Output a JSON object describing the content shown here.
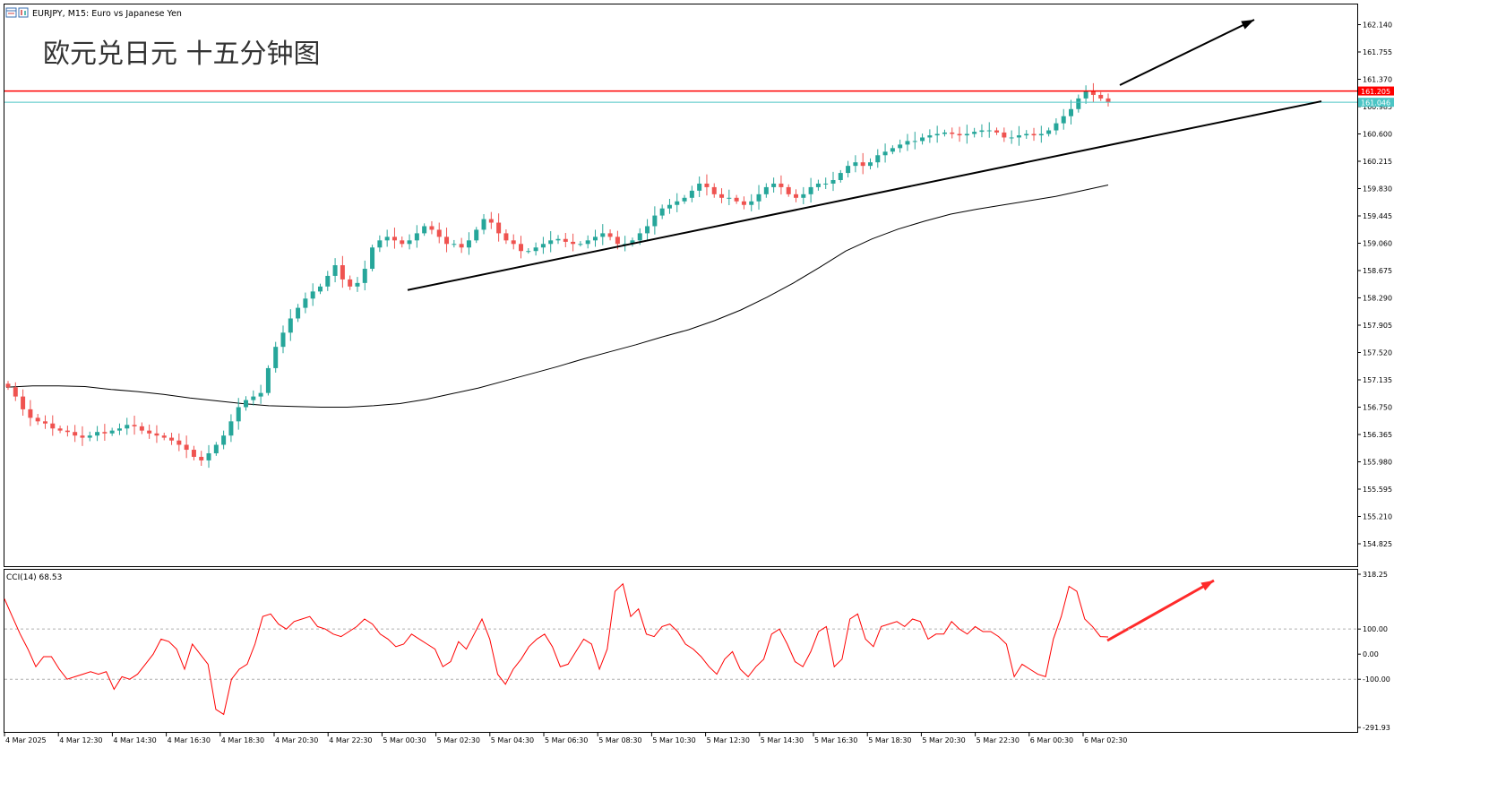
{
  "header": {
    "symbol_line": "EURJPY, M15: Euro vs Japanese Yen",
    "overlay_title": "欧元兑日元 十五分钟图"
  },
  "icons": [
    "window-icon",
    "chart-icon"
  ],
  "colors": {
    "bull": "#26a69a",
    "bear": "#ef5350",
    "resistance": "#ff0000",
    "current": "#4cc5c5",
    "ma": "#000000",
    "cci": "#ff0000",
    "arrow_black": "#000000",
    "arrow_red": "#ff2a2a"
  },
  "chart_data": [
    {
      "type": "candlestick",
      "title": "EURJPY, M15: Euro vs Japanese Yen",
      "yticks": [
        "162.140",
        "161.755",
        "161.370",
        "160.985",
        "160.600",
        "160.215",
        "159.830",
        "159.445",
        "159.060",
        "158.675",
        "158.290",
        "157.905",
        "157.520",
        "157.135",
        "156.750",
        "156.365",
        "155.980",
        "155.595",
        "155.210",
        "154.825"
      ],
      "ylim": [
        154.6,
        162.4
      ],
      "xticks": [
        "4 Mar 2025",
        "4 Mar 12:30",
        "4 Mar 14:30",
        "4 Mar 16:30",
        "4 Mar 18:30",
        "4 Mar 20:30",
        "4 Mar 22:30",
        "5 Mar 00:30",
        "5 Mar 02:30",
        "5 Mar 04:30",
        "5 Mar 06:30",
        "5 Mar 08:30",
        "5 Mar 10:30",
        "5 Mar 12:30",
        "5 Mar 14:30",
        "5 Mar 16:30",
        "5 Mar 18:30",
        "5 Mar 20:30",
        "5 Mar 22:30",
        "6 Mar 00:30",
        "6 Mar 02:30"
      ],
      "resistance_level": "161.205",
      "current_price": "161.046",
      "close_path": [
        157.03,
        156.9,
        156.72,
        156.6,
        156.55,
        156.52,
        156.45,
        156.42,
        156.4,
        156.35,
        156.32,
        156.35,
        156.4,
        156.38,
        156.42,
        156.45,
        156.5,
        156.48,
        156.42,
        156.38,
        156.35,
        156.32,
        156.28,
        156.22,
        156.15,
        156.05,
        156.0,
        156.1,
        156.22,
        156.35,
        156.55,
        156.75,
        156.85,
        156.9,
        156.95,
        157.3,
        157.6,
        157.8,
        158.0,
        158.15,
        158.28,
        158.38,
        158.45,
        158.6,
        158.75,
        158.55,
        158.45,
        158.5,
        158.7,
        159.0,
        159.1,
        159.15,
        159.1,
        159.05,
        159.1,
        159.2,
        159.3,
        159.25,
        159.15,
        159.05,
        159.05,
        159.0,
        159.1,
        159.25,
        159.4,
        159.35,
        159.2,
        159.1,
        159.05,
        158.95,
        158.95,
        159.0,
        159.05,
        159.1,
        159.12,
        159.08,
        159.05,
        159.05,
        159.1,
        159.15,
        159.2,
        159.15,
        159.05,
        159.05,
        159.1,
        159.2,
        159.3,
        159.45,
        159.55,
        159.6,
        159.65,
        159.7,
        159.8,
        159.9,
        159.85,
        159.75,
        159.7,
        159.7,
        159.65,
        159.6,
        159.65,
        159.75,
        159.85,
        159.9,
        159.85,
        159.75,
        159.7,
        159.75,
        159.85,
        159.9,
        159.9,
        159.95,
        160.05,
        160.15,
        160.2,
        160.15,
        160.2,
        160.3,
        160.35,
        160.4,
        160.45,
        160.5,
        160.5,
        160.55,
        160.58,
        160.6,
        160.62,
        160.6,
        160.58,
        160.6,
        160.63,
        160.65,
        160.65,
        160.62,
        160.55,
        160.55,
        160.58,
        160.6,
        160.58,
        160.6,
        160.65,
        160.75,
        160.85,
        160.95,
        161.1,
        161.2,
        161.15,
        161.1,
        161.05
      ],
      "ma_path": [
        157.03,
        157.05,
        157.05,
        157.04,
        157.0,
        156.97,
        156.93,
        156.88,
        156.84,
        156.8,
        156.77,
        156.76,
        156.75,
        156.75,
        156.77,
        156.8,
        156.86,
        156.94,
        157.02,
        157.12,
        157.22,
        157.32,
        157.43,
        157.53,
        157.63,
        157.74,
        157.84,
        157.97,
        158.12,
        158.3,
        158.5,
        158.72,
        158.95,
        159.12,
        159.26,
        159.37,
        159.47,
        159.54,
        159.6,
        159.66,
        159.72,
        159.8,
        159.88
      ],
      "arrow_note": "upward arrows drawn above resistance and on CCI pane"
    },
    {
      "type": "line",
      "name": "CCI(14)",
      "label": "CCI(14) 68.53",
      "yticks": [
        "318.25",
        "100.00",
        "0.00",
        "-100.00",
        "-291.93"
      ],
      "ylim": [
        -291.93,
        318.25
      ],
      "levels": [
        100,
        -100
      ],
      "values": [
        220,
        150,
        80,
        20,
        -50,
        -10,
        -10,
        -60,
        -100,
        -90,
        -80,
        -70,
        -80,
        -70,
        -140,
        -90,
        -100,
        -80,
        -40,
        0,
        60,
        50,
        20,
        -60,
        40,
        0,
        -40,
        -220,
        -240,
        -100,
        -60,
        -40,
        40,
        150,
        160,
        120,
        100,
        130,
        140,
        150,
        110,
        100,
        80,
        70,
        90,
        110,
        140,
        120,
        80,
        60,
        30,
        40,
        80,
        60,
        40,
        20,
        -50,
        -30,
        50,
        20,
        80,
        140,
        60,
        -80,
        -120,
        -60,
        -20,
        30,
        60,
        80,
        30,
        -50,
        -40,
        10,
        60,
        40,
        -60,
        20,
        250,
        280,
        150,
        180,
        80,
        70,
        110,
        120,
        90,
        40,
        20,
        -10,
        -50,
        -80,
        -20,
        10,
        -60,
        -90,
        -50,
        -20,
        80,
        100,
        40,
        -30,
        -50,
        10,
        90,
        110,
        -50,
        -20,
        140,
        160,
        60,
        30,
        110,
        120,
        130,
        110,
        140,
        130,
        60,
        80,
        80,
        130,
        100,
        80,
        110,
        90,
        90,
        70,
        40,
        -90,
        -40,
        -60,
        -80,
        -90,
        60,
        150,
        270,
        250,
        140,
        110,
        70,
        68.53
      ]
    }
  ]
}
